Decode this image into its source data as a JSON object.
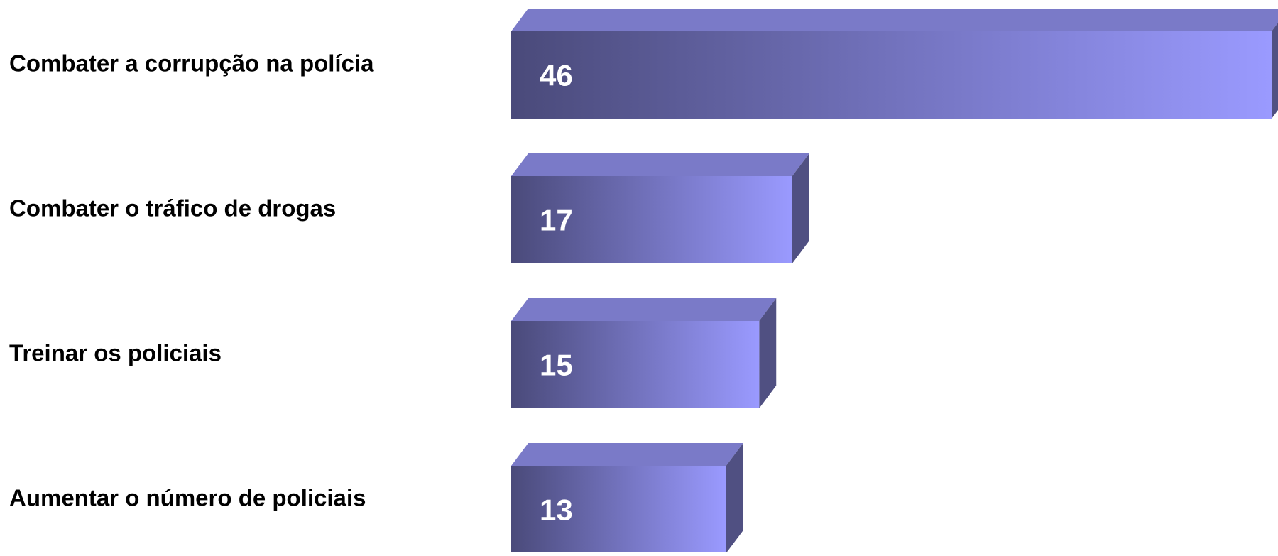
{
  "chart_data": {
    "type": "bar",
    "orientation": "horizontal",
    "style": "3d",
    "categories": [
      "Combater a corrupção na polícia",
      "Combater o tráfico de drogas",
      "Treinar os policiais",
      "Aumentar o número de policiais"
    ],
    "values": [
      46,
      17,
      15,
      13
    ],
    "data_labels": [
      "46",
      "17",
      "15",
      "13"
    ],
    "title": "",
    "xlabel": "",
    "ylabel": "",
    "grid": false,
    "legend": "none",
    "colors": {
      "bar_front_dark": "#4a4a7a",
      "bar_front_light": "#9a9aff",
      "bar_top": "#7a7ac8",
      "bar_side": "#505082",
      "category_label": "#000000",
      "value_label": "#ffffff"
    }
  }
}
